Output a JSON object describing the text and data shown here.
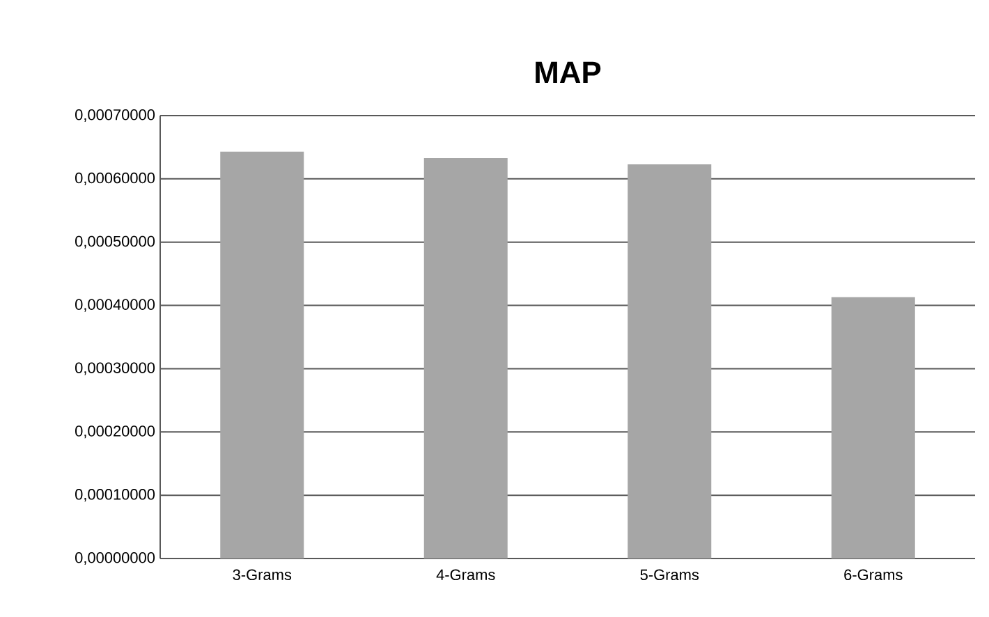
{
  "chart_data": {
    "type": "bar",
    "title": "MAP",
    "categories": [
      "3-Grams",
      "4-Grams",
      "5-Grams",
      "6-Grams"
    ],
    "values": [
      0.000643,
      0.000633,
      0.000623,
      0.000413
    ],
    "color": "#a6a6a6",
    "ylim": [
      0,
      0.0007
    ],
    "yticks": [
      {
        "value": 0,
        "label": "0,00000000"
      },
      {
        "value": 0.0001,
        "label": "0,00010000"
      },
      {
        "value": 0.0002,
        "label": "0,00020000"
      },
      {
        "value": 0.0003,
        "label": "0,00030000"
      },
      {
        "value": 0.0004,
        "label": "0,00040000"
      },
      {
        "value": 0.0005,
        "label": "0,00050000"
      },
      {
        "value": 0.0006,
        "label": "0,00060000"
      },
      {
        "value": 0.0007,
        "label": "0,00070000"
      }
    ],
    "grid": "y"
  }
}
